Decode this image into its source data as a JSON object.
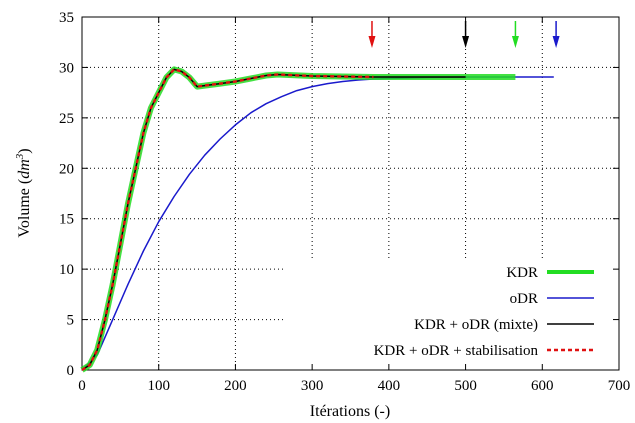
{
  "chart_data": {
    "type": "line",
    "xlabel": "Itérations (-)",
    "ylabel_main": "Volume (",
    "ylabel_unit": "dm",
    "ylabel_exp": "3",
    "ylabel_close": ")",
    "xlim": [
      0,
      700
    ],
    "ylim": [
      0,
      35
    ],
    "xticks": [
      0,
      100,
      200,
      300,
      400,
      500,
      600,
      700
    ],
    "yticks": [
      0,
      5,
      10,
      15,
      20,
      25,
      30,
      35
    ],
    "grid": true,
    "legend_position": "bottom-right",
    "series": [
      {
        "name": "KDR",
        "color": "#22dd22",
        "style": "thick",
        "x": [
          0,
          10,
          20,
          30,
          40,
          50,
          60,
          70,
          80,
          90,
          100,
          110,
          120,
          130,
          140,
          150,
          160,
          180,
          200,
          220,
          240,
          255,
          270,
          300,
          340,
          380,
          420,
          460,
          500,
          540,
          565
        ],
        "y": [
          0,
          0.5,
          2,
          5,
          8.5,
          12.5,
          16.5,
          20,
          23.5,
          26,
          27.5,
          29,
          29.8,
          29.6,
          29,
          28.1,
          28.2,
          28.4,
          28.6,
          28.9,
          29.2,
          29.3,
          29.25,
          29.15,
          29.1,
          29.05,
          29.05,
          29.05,
          29.05,
          29.05,
          29.05
        ]
      },
      {
        "name": "oDR",
        "color": "#1a1acc",
        "style": "thin",
        "x": [
          0,
          20,
          40,
          60,
          80,
          100,
          120,
          140,
          160,
          180,
          200,
          220,
          240,
          260,
          280,
          300,
          320,
          340,
          360,
          380,
          400,
          450,
          500,
          550,
          615
        ],
        "y": [
          0,
          1.5,
          5,
          8.5,
          11.8,
          14.7,
          17.2,
          19.4,
          21.3,
          22.9,
          24.3,
          25.5,
          26.4,
          27.1,
          27.7,
          28.1,
          28.4,
          28.6,
          28.75,
          28.85,
          28.9,
          29,
          29.05,
          29.05,
          29.05
        ]
      },
      {
        "name": "KDR + oDR (mixte)",
        "color": "#000000",
        "style": "thin",
        "x": [
          0,
          10,
          20,
          30,
          40,
          50,
          60,
          70,
          80,
          90,
          100,
          110,
          120,
          130,
          140,
          150,
          160,
          180,
          200,
          220,
          240,
          255,
          270,
          300,
          340,
          380,
          420,
          460,
          500
        ],
        "y": [
          0,
          0.5,
          2,
          5,
          8.5,
          12.5,
          16.5,
          20,
          23.5,
          26,
          27.5,
          29,
          29.8,
          29.6,
          29,
          28.1,
          28.2,
          28.4,
          28.6,
          28.9,
          29.2,
          29.3,
          29.25,
          29.15,
          29.1,
          29.05,
          29.05,
          29.05,
          29.05
        ]
      },
      {
        "name": "KDR + oDR + stabilisation",
        "color": "#e01010",
        "style": "dashed",
        "x": [
          0,
          10,
          20,
          30,
          40,
          50,
          60,
          70,
          80,
          90,
          100,
          110,
          120,
          130,
          140,
          150,
          160,
          180,
          200,
          220,
          240,
          255,
          270,
          300,
          340,
          380
        ],
        "y": [
          0,
          0.5,
          2,
          5,
          8.5,
          12.5,
          16.5,
          20,
          23.5,
          26,
          27.5,
          29,
          29.8,
          29.6,
          29,
          28.1,
          28.2,
          28.4,
          28.6,
          28.9,
          29.2,
          29.3,
          29.25,
          29.15,
          29.1,
          29.05
        ]
      }
    ],
    "arrows": [
      {
        "x": 378,
        "color": "#e01010"
      },
      {
        "x": 500,
        "color": "#000000"
      },
      {
        "x": 565,
        "color": "#22dd22"
      },
      {
        "x": 618,
        "color": "#1a1acc"
      }
    ]
  }
}
